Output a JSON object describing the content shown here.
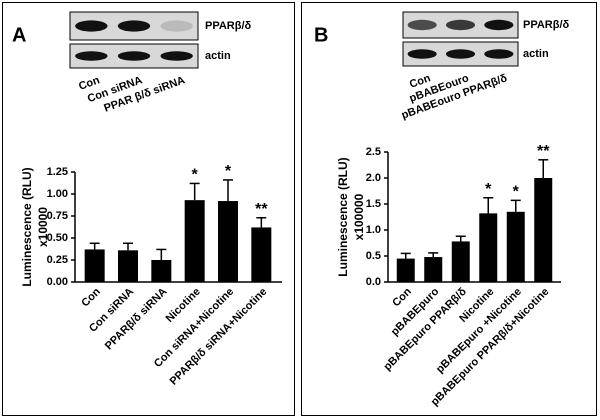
{
  "chart_data": [
    {
      "type": "bar",
      "panel": "A",
      "ylabel": [
        "Luminescence (RLU)",
        "x10000"
      ],
      "categories": [
        "Con",
        "Con siRNA",
        "PPARβ/δ siRNA",
        "Nicotine",
        "Con siRNA+Nicotine",
        "PPARβ/δ siRNA+Nicotine"
      ],
      "values": [
        0.37,
        0.36,
        0.25,
        0.93,
        0.92,
        0.62
      ],
      "errors": [
        0.07,
        0.08,
        0.12,
        0.19,
        0.24,
        0.11
      ],
      "annotations": [
        null,
        null,
        null,
        "*",
        "*",
        "**"
      ],
      "color": "#000000",
      "ylim": [
        0,
        1.25
      ],
      "yticks": [
        {
          "value": 0,
          "label": "0.00"
        },
        0.25,
        {
          "value": 0.5,
          "label": "0.50"
        },
        0.75,
        {
          "value": 1,
          "label": "1.00"
        },
        1.25
      ],
      "blot": {
        "bands": [
          "PPARβ/δ",
          "actin"
        ],
        "lanes": [
          "Con",
          "Con siRNA",
          "PPAR β/δ siRNA"
        ]
      }
    },
    {
      "type": "bar",
      "panel": "B",
      "ylabel": [
        "Luminescence (RLU)",
        "x100000"
      ],
      "categories": [
        "Con",
        "pBABEpuro",
        "pBABEpuro PPARβ/δ",
        "Nicotine",
        "pBABEpuro +Nicotine",
        "pBABEpuro PPARβ/δ+Nicotine"
      ],
      "values": [
        0.45,
        0.48,
        0.78,
        1.32,
        1.35,
        2.0
      ],
      "errors": [
        0.1,
        0.08,
        0.1,
        0.3,
        0.22,
        0.35
      ],
      "annotations": [
        null,
        null,
        null,
        "*",
        "*",
        "**"
      ],
      "color": "#000000",
      "ylim": [
        0,
        2.5
      ],
      "yticks": [
        {
          "value": 0,
          "label": "0.0"
        },
        0.5,
        {
          "value": 1,
          "label": "1.0"
        },
        1.5,
        {
          "value": 2,
          "label": "2.0"
        },
        2.5
      ],
      "blot": {
        "bands": [
          "PPARβ/δ",
          "actin"
        ],
        "lanes": [
          "Con",
          "pBABEouro",
          "pBABEouro PPARβ/δ"
        ]
      }
    }
  ]
}
